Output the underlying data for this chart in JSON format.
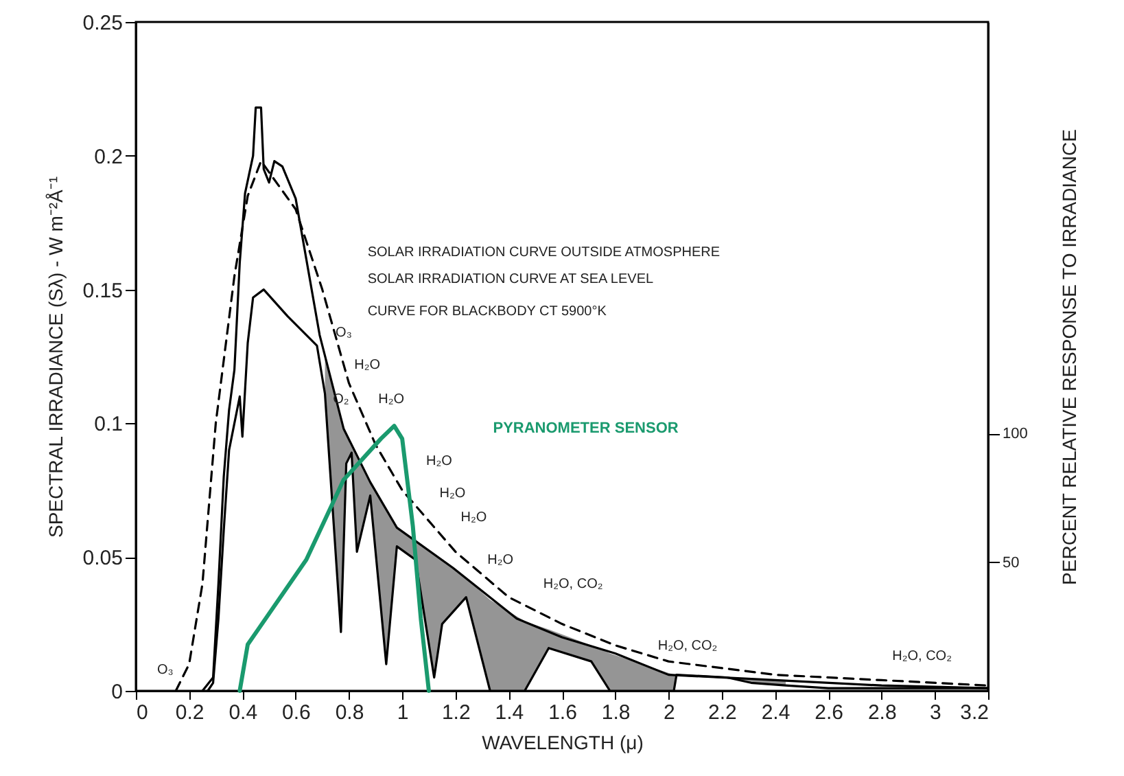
{
  "chart_data": {
    "type": "line",
    "xlabel": "WAVELENGTH (μ)",
    "ylabel": "SPECTRAL IRRADIANCE (Sλ) - W m⁻²Å⁻¹",
    "y2label": "PERCENT RELATIVE RESPONSE TO IRRADIANCE",
    "xlim": [
      0,
      3.2
    ],
    "xticks": [
      0,
      0.2,
      0.4,
      0.6,
      0.8,
      1.0,
      1.2,
      1.4,
      1.6,
      1.8,
      2.0,
      2.2,
      2.4,
      2.6,
      2.8,
      3.0,
      3.2
    ],
    "ylim": [
      0,
      0.25
    ],
    "yticks": [
      0,
      0.05,
      0.1,
      0.15,
      0.2,
      0.25
    ],
    "y2lim": [
      0,
      260
    ],
    "y2ticks": [
      50,
      100
    ],
    "grid": false,
    "series": [
      {
        "color": "#000000",
        "line_style": "solid",
        "x": [
          0.25,
          0.29,
          0.31,
          0.33,
          0.35,
          0.37,
          0.39,
          0.41,
          0.44,
          0.45,
          0.47,
          0.48,
          0.5,
          0.52,
          0.55,
          0.6,
          0.69,
          0.78,
          0.88,
          0.98,
          1.19,
          1.43,
          1.6,
          1.8,
          2.0,
          2.4,
          2.8,
          3.2
        ],
        "values": [
          0,
          0.005,
          0.04,
          0.08,
          0.105,
          0.12,
          0.16,
          0.186,
          0.2,
          0.218,
          0.218,
          0.195,
          0.19,
          0.198,
          0.196,
          0.184,
          0.133,
          0.098,
          0.078,
          0.061,
          0.046,
          0.027,
          0.02,
          0.014,
          0.006,
          0.004,
          0.002,
          0.001
        ]
      },
      {
        "color": "#000000",
        "line_style": "solid",
        "x": [
          0.27,
          0.29,
          0.31,
          0.33,
          0.35,
          0.37,
          0.39,
          0.4,
          0.42,
          0.44,
          0.48,
          0.57,
          0.68,
          0.71,
          0.77,
          0.79,
          0.81,
          0.83,
          0.88,
          0.94,
          0.98,
          1.05,
          1.12,
          1.15,
          1.24,
          1.33,
          1.46,
          1.55,
          1.71,
          1.78,
          2.02,
          2.03,
          2.22,
          2.31,
          2.44,
          2.6,
          3.2
        ],
        "values": [
          0,
          0.003,
          0.027,
          0.06,
          0.09,
          0.1,
          0.11,
          0.095,
          0.13,
          0.147,
          0.15,
          0.14,
          0.129,
          0.111,
          0.022,
          0.085,
          0.089,
          0.052,
          0.073,
          0.01,
          0.054,
          0.049,
          0.005,
          0.025,
          0.035,
          0,
          0,
          0.016,
          0.011,
          0,
          0,
          0.006,
          0.005,
          0.003,
          0.002,
          0.001,
          0.001
        ],
        "lower": [
          null,
          null,
          null,
          null,
          null,
          null,
          null,
          null,
          null,
          null,
          null,
          null,
          null,
          0.111,
          0.022,
          0.085,
          0.089,
          0.052,
          0.073,
          0.01,
          0.054,
          0.049,
          0.005,
          0.025,
          0.035,
          0,
          0,
          0.016,
          0.011,
          0,
          0,
          0.006,
          0.005,
          0.003,
          0.002,
          null,
          null
        ],
        "upper": [
          null,
          null,
          null,
          null,
          null,
          null,
          null,
          null,
          null,
          null,
          null,
          null,
          null,
          0.125,
          0.102,
          0.096,
          0.092,
          0.088,
          0.078,
          0.068,
          0.061,
          0.056,
          0.051,
          0.049,
          0.042,
          0.034,
          0.026,
          0.023,
          0.017,
          0.014,
          0.006,
          0.006,
          0.005,
          0.0047,
          0.004,
          null,
          null
        ]
      },
      {
        "color": "#000000",
        "line_style": "dashed",
        "x": [
          0.15,
          0.2,
          0.25,
          0.3,
          0.37,
          0.42,
          0.47,
          0.6,
          0.7,
          0.8,
          0.9,
          1.0,
          1.2,
          1.4,
          1.6,
          1.8,
          2.0,
          2.4,
          2.8,
          3.2
        ],
        "values": [
          0,
          0.01,
          0.04,
          0.1,
          0.155,
          0.185,
          0.198,
          0.18,
          0.15,
          0.115,
          0.092,
          0.075,
          0.052,
          0.035,
          0.025,
          0.017,
          0.011,
          0.006,
          0.004,
          0.002
        ]
      },
      {
        "name": "PYRANOMETER SENSOR",
        "color": "#1a9a6e",
        "line_style": "solid",
        "axis": "y2",
        "x": [
          0.39,
          0.42,
          0.46,
          0.64,
          0.78,
          0.92,
          0.97,
          1.0,
          1.04,
          1.07,
          1.1
        ],
        "values": [
          0,
          18,
          24,
          51,
          82,
          98,
          103,
          98,
          64,
          28,
          0
        ]
      }
    ],
    "annotations": [
      "SOLAR IRRADIATION CURVE OUTSIDE ATMOSPHERE",
      "SOLAR IRRADIATION CURVE AT SEA LEVEL",
      "CURVE FOR BLACKBODY CT 5900°K",
      "O₃",
      "H₂O",
      "O₂",
      "H₂O",
      "H₂O",
      "H₂O",
      "H₂O",
      "H₂O",
      "H₂O, CO₂",
      "H₂O, CO₂",
      "H₂O, CO₂",
      "O₃"
    ]
  }
}
